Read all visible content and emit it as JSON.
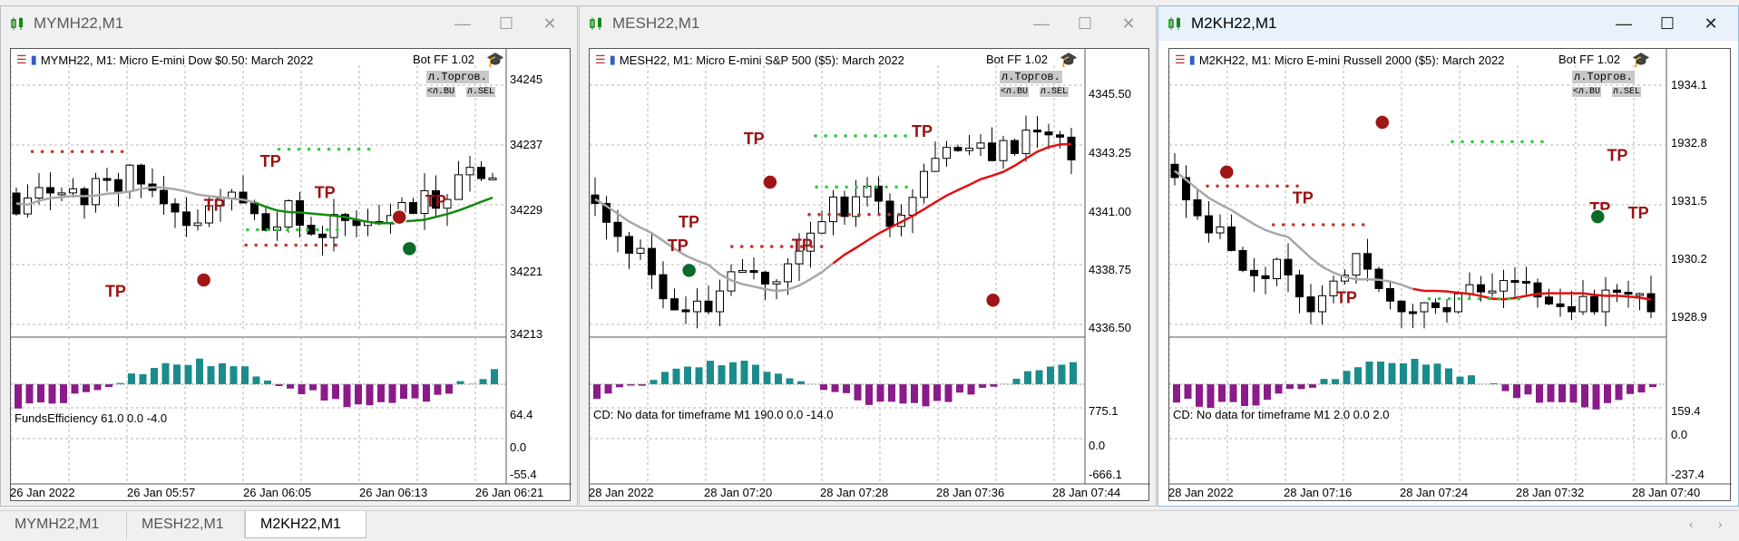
{
  "tabs": [
    "MYMH22,M1",
    "MESH22,M1",
    "M2KH22,M1"
  ],
  "active_tab": 2,
  "windows": [
    {
      "title": "MYMH22,M1",
      "chart_title": "MYMH22, M1:  Micro E-mini Dow $0.50: March 2022",
      "bot_label": "Bot FF 1.02",
      "torg_label": "л.Торгов.",
      "bu_label": "<л.BU",
      "sel_label": "л.SEL",
      "price_labels": [
        "34245",
        "34237",
        "34229",
        "34221",
        "34213"
      ],
      "indicator_label": "FundsEfficiency 61.0 0.0 -4.0",
      "ind_scale": [
        "64.4",
        "0.0",
        "-55.4"
      ],
      "time_labels": [
        "26 Jan 2022",
        "26 Jan 05:57",
        "26 Jan 06:05",
        "26 Jan 06:13",
        "26 Jan 06:21"
      ],
      "colors": {
        "ma": "#138a13",
        "ma_gray": "#a8a8a8",
        "hist_pos": "#1b8c8c",
        "hist_neg": "#8b1a8b"
      }
    },
    {
      "title": "MESH22,M1",
      "chart_title": "MESH22, M1:  Micro E-mini S&P 500 ($5): March 2022",
      "bot_label": "Bot FF 1.02",
      "torg_label": "л.Торгов.",
      "bu_label": "<л.BU",
      "sel_label": "л.SEL",
      "price_labels": [
        "4345.50",
        "4343.25",
        "4341.00",
        "4338.75",
        "4336.50"
      ],
      "indicator_label": "CD: No data for timeframe M1 190.0 0.0 -14.0",
      "ind_scale": [
        "775.1",
        "0.0",
        "-666.1"
      ],
      "time_labels": [
        "28 Jan 2022",
        "28 Jan 07:20",
        "28 Jan 07:28",
        "28 Jan 07:36",
        "28 Jan 07:44"
      ],
      "colors": {
        "ma": "#e01010",
        "ma_gray": "#a8a8a8",
        "hist_pos": "#1b8c8c",
        "hist_neg": "#8b1a8b"
      }
    },
    {
      "title": "M2KH22,M1",
      "chart_title": "M2KH22, M1:  Micro E-mini Russell 2000 ($5): March 2022",
      "bot_label": "Bot FF 1.02",
      "torg_label": "л.Торгов.",
      "bu_label": "<л.BU",
      "sel_label": "л.SEL",
      "price_labels": [
        "1934.1",
        "1932.8",
        "1931.5",
        "1930.2",
        "1928.9"
      ],
      "indicator_label": "CD: No data for timeframe M1 2.0 0.0 2.0",
      "ind_scale": [
        "159.4",
        "0.0",
        "-237.4"
      ],
      "time_labels": [
        "28 Jan 2022",
        "28 Jan 07:16",
        "28 Jan 07:24",
        "28 Jan 07:32",
        "28 Jan 07:40"
      ],
      "colors": {
        "ma": "#e01010",
        "ma_gray": "#a8a8a8",
        "hist_pos": "#1b8c8c",
        "hist_neg": "#8b1a8b"
      }
    }
  ],
  "tp_label": "TP",
  "window_controls": {
    "minimize": "—",
    "maximize": "☐",
    "close": "✕"
  },
  "scroll_left": "‹",
  "scroll_right": "›"
}
